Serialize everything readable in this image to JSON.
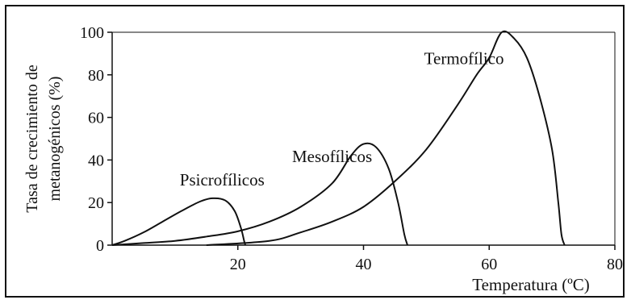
{
  "chart_data": {
    "type": "line",
    "title": "",
    "xlabel": "Temperatura (ºC)",
    "ylabel_lines": [
      "Tasa de crecimiento de",
      "metanogénicos (%)"
    ],
    "xlim": [
      0,
      80
    ],
    "ylim": [
      0,
      100
    ],
    "x_ticks": [
      "20",
      "40",
      "60",
      "80"
    ],
    "y_ticks": [
      "0",
      "20",
      "40",
      "60",
      "80",
      "100"
    ],
    "grid": false,
    "series": [
      {
        "name": "Psicrofílicos",
        "points": [
          [
            0,
            0
          ],
          [
            2,
            2
          ],
          [
            5,
            6
          ],
          [
            8,
            11
          ],
          [
            11,
            16
          ],
          [
            14,
            20.5
          ],
          [
            16,
            22
          ],
          [
            18,
            21
          ],
          [
            19.5,
            16
          ],
          [
            20.5,
            8
          ],
          [
            21,
            2
          ],
          [
            21.2,
            0
          ]
        ]
      },
      {
        "name": "Mesofílicos",
        "points": [
          [
            0,
            0
          ],
          [
            5,
            1
          ],
          [
            10,
            2
          ],
          [
            15,
            4
          ],
          [
            20,
            6.5
          ],
          [
            25,
            11
          ],
          [
            30,
            18
          ],
          [
            35,
            29
          ],
          [
            38,
            42
          ],
          [
            40,
            47.5
          ],
          [
            42,
            46
          ],
          [
            44,
            36
          ],
          [
            45.5,
            20
          ],
          [
            46.5,
            5
          ],
          [
            47,
            0
          ]
        ]
      },
      {
        "name": "Termofílico",
        "points": [
          [
            15,
            0
          ],
          [
            25,
            2
          ],
          [
            30,
            6
          ],
          [
            35,
            11
          ],
          [
            40,
            18
          ],
          [
            45,
            30
          ],
          [
            50,
            45
          ],
          [
            55,
            66
          ],
          [
            58,
            80
          ],
          [
            60,
            88
          ],
          [
            62,
            100
          ],
          [
            64,
            97
          ],
          [
            66,
            88
          ],
          [
            68,
            70
          ],
          [
            70,
            45
          ],
          [
            71,
            20
          ],
          [
            71.5,
            5
          ],
          [
            72,
            0
          ]
        ]
      }
    ],
    "annotations": [
      {
        "text": "Psicrofílicos",
        "x": 17.5,
        "y": 28
      },
      {
        "text": "Mesofílicos",
        "x": 35,
        "y": 39
      },
      {
        "text": "Termofílico",
        "x": 56,
        "y": 85
      }
    ]
  }
}
